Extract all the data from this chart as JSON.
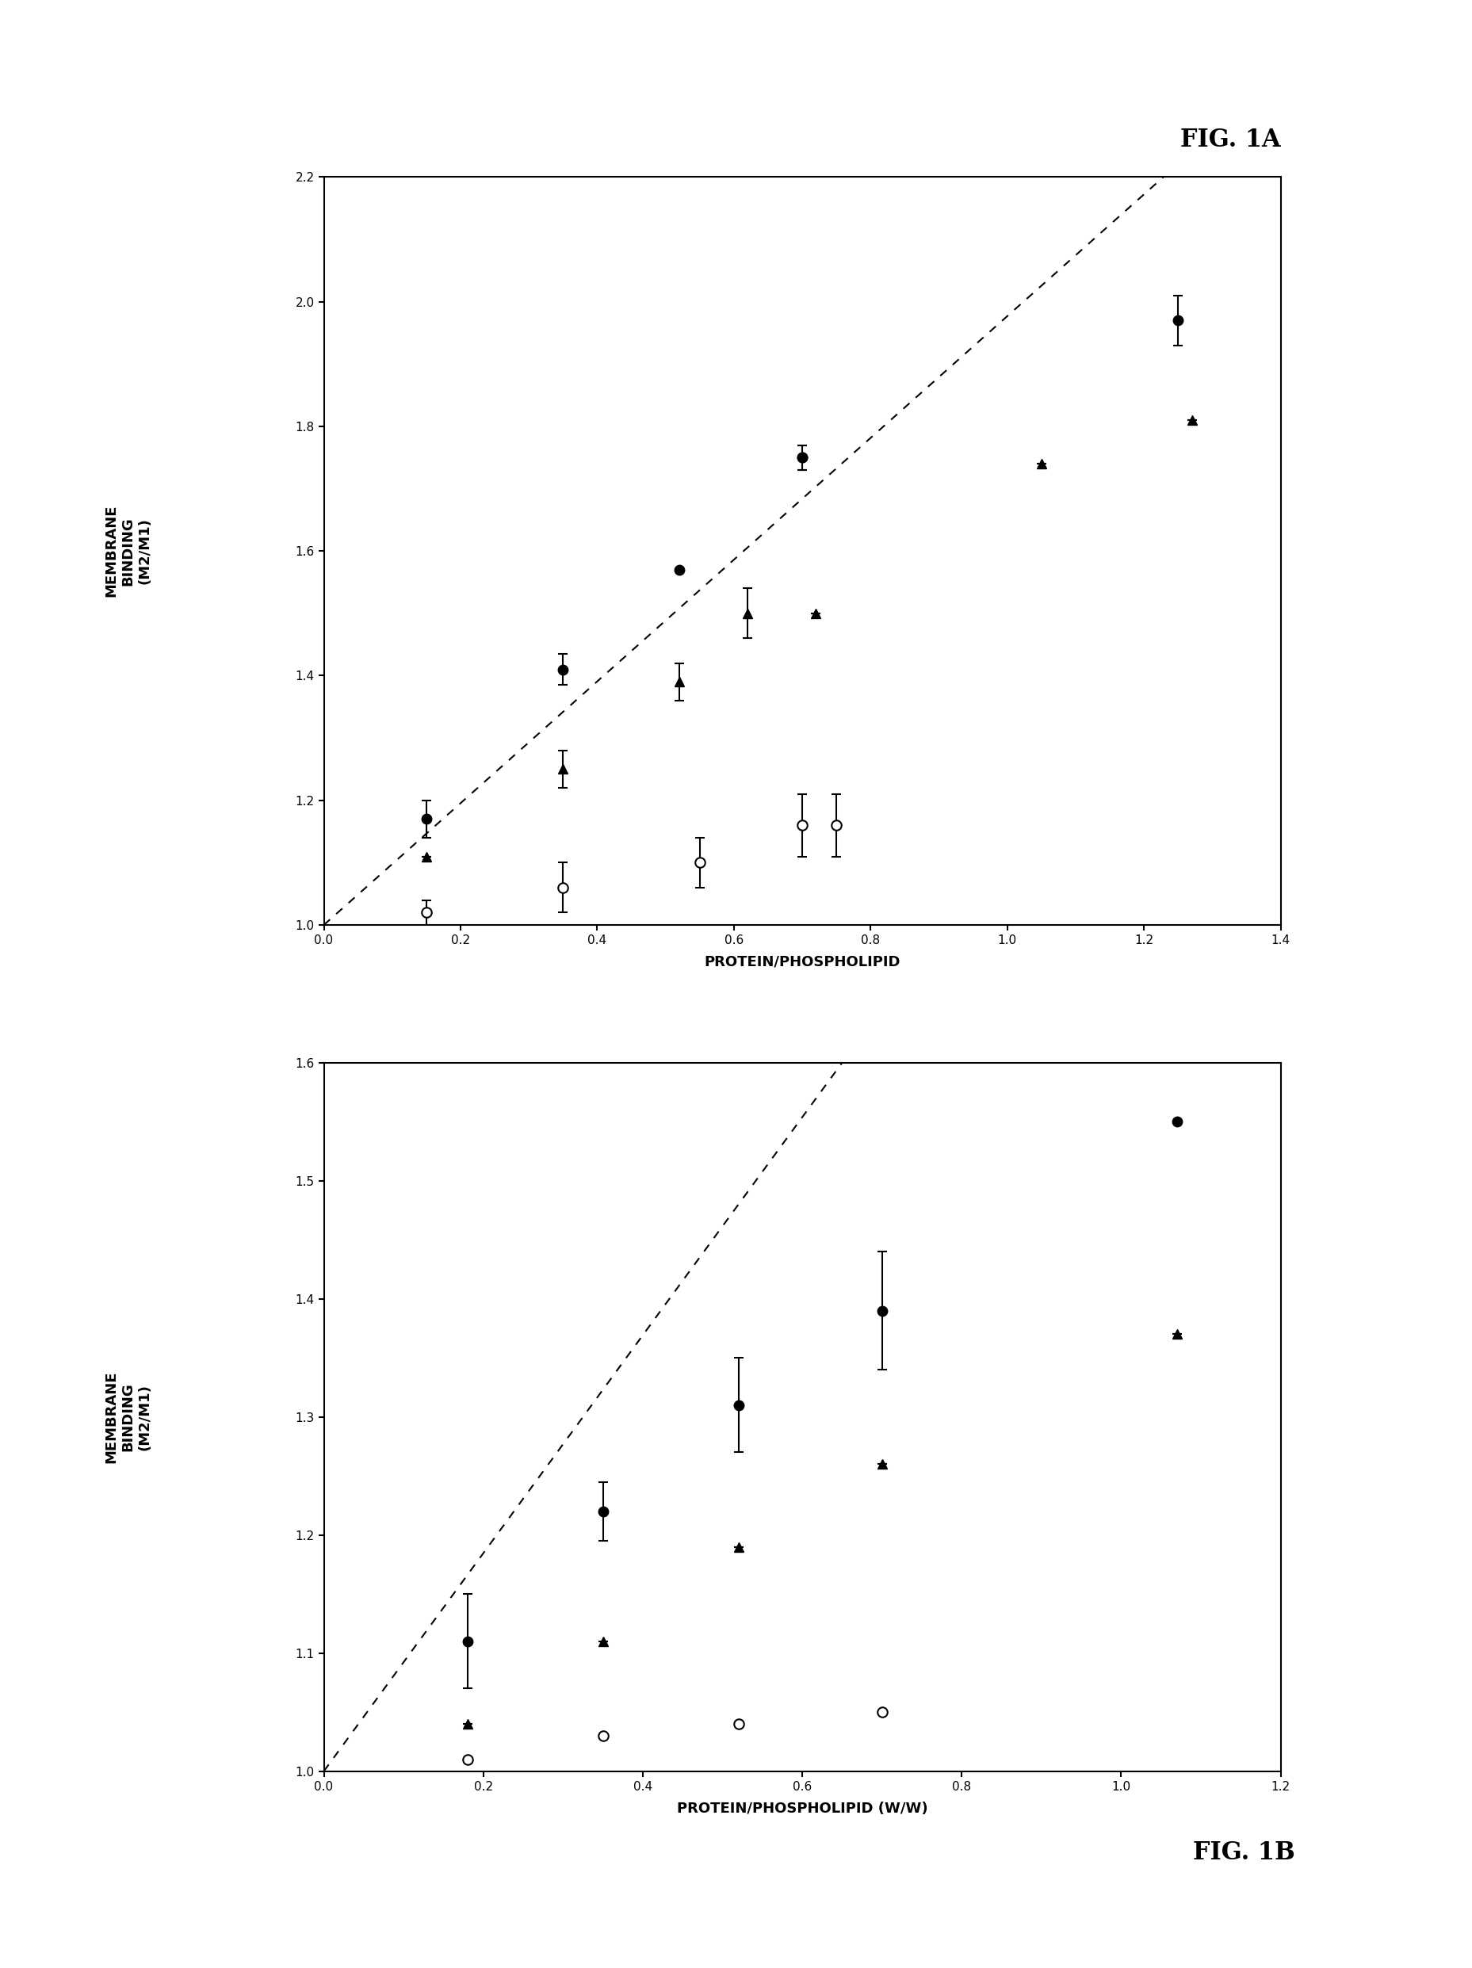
{
  "fig1a": {
    "title": "FIG. 1A",
    "xlabel": "PROTEIN/PHOSPHOLIPID",
    "ylabel": "MEMBRANE\nBINDING\n(M2/M1)",
    "xlim": [
      0,
      1.4
    ],
    "ylim": [
      1.0,
      2.2
    ],
    "xticks": [
      0,
      0.2,
      0.4,
      0.6,
      0.8,
      1.0,
      1.2,
      1.4
    ],
    "yticks": [
      1.0,
      1.2,
      1.4,
      1.6,
      1.8,
      2.0,
      2.2
    ],
    "dotted_line": [
      [
        0,
        1.0
      ],
      [
        1.3,
        2.27
      ]
    ],
    "filled_circle": {
      "x": [
        0.15,
        0.35,
        0.52,
        0.7,
        0.7,
        1.25
      ],
      "y": [
        1.17,
        1.41,
        1.57,
        1.75,
        1.75,
        1.97
      ],
      "yerr": [
        0.03,
        0.025,
        0.0,
        0.02,
        0.02,
        0.04
      ]
    },
    "filled_triangle": {
      "x": [
        0.15,
        0.35,
        0.52,
        0.62,
        0.72,
        1.05,
        1.27
      ],
      "y": [
        1.11,
        1.25,
        1.39,
        1.5,
        1.5,
        1.74,
        1.81
      ],
      "yerr": [
        0.0,
        0.03,
        0.03,
        0.04,
        0.0,
        0.0,
        0.0
      ]
    },
    "open_circle": {
      "x": [
        0.15,
        0.35,
        0.55,
        0.7,
        0.75
      ],
      "y": [
        1.02,
        1.06,
        1.1,
        1.16,
        1.16
      ],
      "yerr": [
        0.02,
        0.04,
        0.04,
        0.05,
        0.05
      ]
    }
  },
  "fig1b": {
    "title": "FIG. 1B",
    "xlabel": "PROTEIN/PHOSPHOLIPID (W/W)",
    "ylabel": "MEMBRANE\nBINDING\n(M2/M1)",
    "xlim": [
      0,
      1.2
    ],
    "ylim": [
      1.0,
      1.6
    ],
    "xticks": [
      0,
      0.2,
      0.4,
      0.6,
      0.8,
      1.0,
      1.2
    ],
    "yticks": [
      1.0,
      1.1,
      1.2,
      1.3,
      1.4,
      1.5,
      1.6
    ],
    "dotted_line": [
      [
        0,
        1.0
      ],
      [
        0.65,
        1.6
      ]
    ],
    "filled_circle": {
      "x": [
        0.18,
        0.35,
        0.52,
        0.7,
        1.07
      ],
      "y": [
        1.11,
        1.22,
        1.31,
        1.39,
        1.55
      ],
      "yerr": [
        0.04,
        0.025,
        0.04,
        0.05,
        0.0
      ]
    },
    "filled_triangle": {
      "x": [
        0.18,
        0.35,
        0.52,
        0.7,
        1.07
      ],
      "y": [
        1.04,
        1.11,
        1.19,
        1.26,
        1.37
      ],
      "yerr": [
        0.0,
        0.0,
        0.0,
        0.0,
        0.0
      ]
    },
    "open_circle": {
      "x": [
        0.18,
        0.35,
        0.52,
        0.7
      ],
      "y": [
        1.01,
        1.03,
        1.04,
        1.05
      ],
      "yerr": [
        0.0,
        0.0,
        0.0,
        0.0
      ]
    }
  }
}
